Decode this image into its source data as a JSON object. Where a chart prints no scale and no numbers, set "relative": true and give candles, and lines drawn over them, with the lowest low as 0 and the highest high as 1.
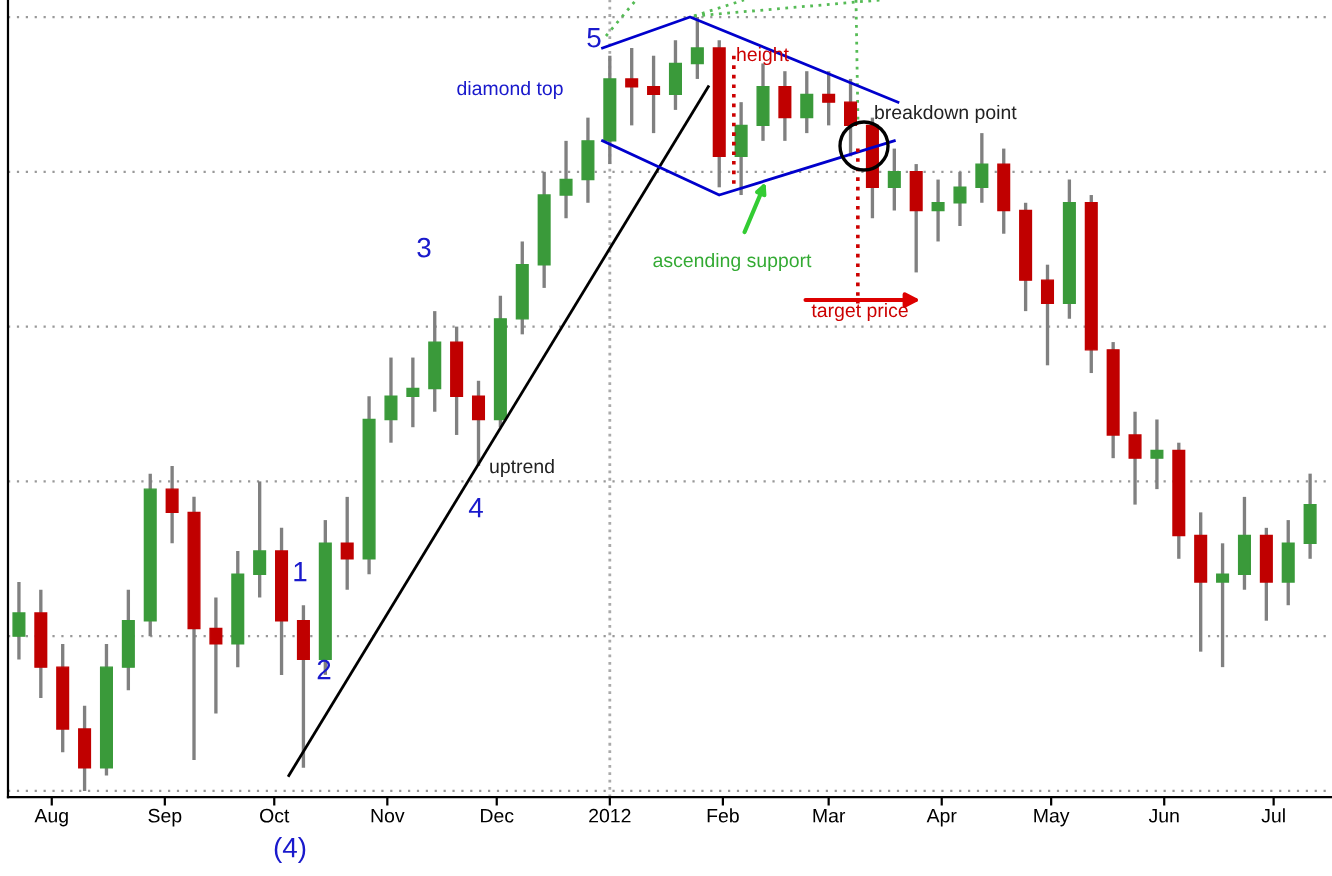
{
  "chart_data": {
    "type": "candlestick",
    "relative": true,
    "tick_labels": "x",
    "grid": "y",
    "x": [
      "2011-07-23",
      "2011-07-29",
      "2011-08-04",
      "2011-08-10",
      "2011-08-16",
      "2011-08-22",
      "2011-08-28",
      "2011-09-03",
      "2011-09-09",
      "2011-09-15",
      "2011-09-21",
      "2011-09-27",
      "2011-10-03",
      "2011-10-09",
      "2011-10-15",
      "2011-10-21",
      "2011-10-27",
      "2011-11-02",
      "2011-11-08",
      "2011-11-14",
      "2011-11-20",
      "2011-11-26",
      "2011-12-02",
      "2011-12-08",
      "2011-12-14",
      "2011-12-20",
      "2011-12-26",
      "2012-01-01",
      "2012-01-07",
      "2012-01-13",
      "2012-01-19",
      "2012-01-25",
      "2012-01-31",
      "2012-02-06",
      "2012-02-12",
      "2012-02-18",
      "2012-02-24",
      "2012-03-01",
      "2012-03-07",
      "2012-03-13",
      "2012-03-19",
      "2012-03-25",
      "2012-03-31",
      "2012-04-06",
      "2012-04-12",
      "2012-04-18",
      "2012-04-24",
      "2012-04-30",
      "2012-05-06",
      "2012-05-12",
      "2012-05-18",
      "2012-05-24",
      "2012-05-30",
      "2012-06-05",
      "2012-06-11",
      "2012-06-17",
      "2012-06-23",
      "2012-06-29",
      "2012-07-05",
      "2012-07-11"
    ],
    "ohlc": [
      [
        0.2,
        0.27,
        0.17,
        0.23
      ],
      [
        0.23,
        0.26,
        0.12,
        0.16
      ],
      [
        0.16,
        0.19,
        0.05,
        0.08
      ],
      [
        0.08,
        0.11,
        0.0,
        0.03
      ],
      [
        0.03,
        0.19,
        0.02,
        0.16
      ],
      [
        0.16,
        0.26,
        0.13,
        0.22
      ],
      [
        0.22,
        0.41,
        0.2,
        0.39
      ],
      [
        0.39,
        0.42,
        0.32,
        0.36
      ],
      [
        0.36,
        0.38,
        0.04,
        0.21
      ],
      [
        0.21,
        0.25,
        0.1,
        0.19
      ],
      [
        0.19,
        0.31,
        0.16,
        0.28
      ],
      [
        0.28,
        0.4,
        0.25,
        0.31
      ],
      [
        0.31,
        0.34,
        0.15,
        0.22
      ],
      [
        0.22,
        0.24,
        0.03,
        0.17
      ],
      [
        0.17,
        0.35,
        0.15,
        0.32
      ],
      [
        0.32,
        0.38,
        0.26,
        0.3
      ],
      [
        0.3,
        0.51,
        0.28,
        0.48
      ],
      [
        0.48,
        0.56,
        0.45,
        0.51
      ],
      [
        0.51,
        0.56,
        0.47,
        0.52
      ],
      [
        0.52,
        0.62,
        0.49,
        0.58
      ],
      [
        0.58,
        0.6,
        0.46,
        0.51
      ],
      [
        0.51,
        0.53,
        0.42,
        0.48
      ],
      [
        0.48,
        0.64,
        0.47,
        0.61
      ],
      [
        0.61,
        0.71,
        0.59,
        0.68
      ],
      [
        0.68,
        0.8,
        0.65,
        0.77
      ],
      [
        0.77,
        0.84,
        0.74,
        0.79
      ],
      [
        0.79,
        0.87,
        0.76,
        0.84
      ],
      [
        0.84,
        0.95,
        0.81,
        0.92
      ],
      [
        0.92,
        0.96,
        0.86,
        0.91
      ],
      [
        0.91,
        0.95,
        0.85,
        0.9
      ],
      [
        0.9,
        0.97,
        0.88,
        0.94
      ],
      [
        0.94,
        1.0,
        0.92,
        0.96
      ],
      [
        0.96,
        0.97,
        0.78,
        0.82
      ],
      [
        0.82,
        0.89,
        0.77,
        0.86
      ],
      [
        0.86,
        0.94,
        0.84,
        0.91
      ],
      [
        0.91,
        0.93,
        0.84,
        0.87
      ],
      [
        0.87,
        0.93,
        0.85,
        0.9
      ],
      [
        0.9,
        0.93,
        0.86,
        0.89
      ],
      [
        0.89,
        0.92,
        0.82,
        0.86
      ],
      [
        0.86,
        0.87,
        0.74,
        0.78
      ],
      [
        0.78,
        0.83,
        0.75,
        0.8
      ],
      [
        0.8,
        0.81,
        0.67,
        0.75
      ],
      [
        0.75,
        0.79,
        0.71,
        0.76
      ],
      [
        0.76,
        0.8,
        0.73,
        0.78
      ],
      [
        0.78,
        0.85,
        0.76,
        0.81
      ],
      [
        0.81,
        0.83,
        0.72,
        0.75
      ],
      [
        0.75,
        0.76,
        0.62,
        0.66
      ],
      [
        0.66,
        0.68,
        0.55,
        0.63
      ],
      [
        0.63,
        0.79,
        0.61,
        0.76
      ],
      [
        0.76,
        0.77,
        0.54,
        0.57
      ],
      [
        0.57,
        0.58,
        0.43,
        0.46
      ],
      [
        0.46,
        0.49,
        0.37,
        0.43
      ],
      [
        0.43,
        0.48,
        0.39,
        0.44
      ],
      [
        0.44,
        0.45,
        0.3,
        0.33
      ],
      [
        0.33,
        0.36,
        0.18,
        0.27
      ],
      [
        0.27,
        0.32,
        0.16,
        0.28
      ],
      [
        0.28,
        0.38,
        0.26,
        0.33
      ],
      [
        0.33,
        0.34,
        0.22,
        0.27
      ],
      [
        0.27,
        0.35,
        0.24,
        0.32
      ],
      [
        0.32,
        0.41,
        0.3,
        0.37
      ]
    ],
    "colors": [
      "#3a9a3a",
      "#c00000",
      "#c00000",
      "#c00000",
      "#3a9a3a",
      "#3a9a3a",
      "#3a9a3a",
      "#c00000",
      "#c00000",
      "#c00000",
      "#3a9a3a",
      "#3a9a3a",
      "#c00000",
      "#c00000",
      "#3a9a3a",
      "#c00000",
      "#3a9a3a",
      "#3a9a3a",
      "#3a9a3a",
      "#3a9a3a",
      "#c00000",
      "#c00000",
      "#3a9a3a",
      "#3a9a3a",
      "#3a9a3a",
      "#3a9a3a",
      "#3a9a3a",
      "#3a9a3a",
      "#c00000",
      "#c00000",
      "#3a9a3a",
      "#3a9a3a",
      "#c00000",
      "#3a9a3a",
      "#3a9a3a",
      "#c00000",
      "#3a9a3a",
      "#c00000",
      "#c00000",
      "#c00000",
      "#3a9a3a",
      "#c00000",
      "#3a9a3a",
      "#3a9a3a",
      "#3a9a3a",
      "#c00000",
      "#c00000",
      "#c00000",
      "#3a9a3a",
      "#c00000",
      "#c00000",
      "#c00000",
      "#3a9a3a",
      "#c00000",
      "#c00000",
      "#3a9a3a",
      "#3a9a3a",
      "#c00000",
      "#3a9a3a",
      "#3a9a3a"
    ],
    "series": [
      {
        "type": "line",
        "x": [
          "2011-10-05",
          "2012-01-28"
        ],
        "values": [
          0.02,
          0.91
        ],
        "color": "#000000"
      },
      {
        "type": "line",
        "x": [
          "2011-12-30",
          "2012-01-23",
          "2012-03-20"
        ],
        "values": [
          0.96,
          1.0,
          0.89
        ],
        "color": "#0000cc"
      },
      {
        "type": "line",
        "x": [
          "2011-12-30",
          "2012-01-31",
          "2012-03-19"
        ],
        "values": [
          0.84,
          0.77,
          0.84
        ],
        "color": "#0000cc"
      },
      {
        "type": "line",
        "x": [
          "2012-02-04",
          "2012-02-04"
        ],
        "values": [
          0.95,
          0.78
        ],
        "color": "#cc0000",
        "line_style": "dotted"
      },
      {
        "type": "line",
        "x": [
          "2012-03-09",
          "2012-03-09"
        ],
        "values": [
          0.83,
          0.63
        ],
        "color": "#cc0000",
        "line_style": "dotted"
      }
    ],
    "ref_lines": [
      {
        "axis": "x",
        "value": "2012-01-01",
        "label": null,
        "color": "#aaaaaa",
        "line_style": "dotted"
      }
    ],
    "xlim": [
      "2011-07-20",
      "2012-07-17"
    ],
    "xticks": [
      {
        "value": "2011-08-01",
        "label": "Aug"
      },
      {
        "value": "2011-09-01",
        "label": "Sep"
      },
      {
        "value": "2011-10-01",
        "label": "Oct"
      },
      {
        "value": "2011-11-01",
        "label": "Nov"
      },
      {
        "value": "2011-12-01",
        "label": "Dec"
      },
      {
        "value": "2012-01-01",
        "label": "2012"
      },
      {
        "value": "2012-02-01",
        "label": "Feb"
      },
      {
        "value": "2012-03-01",
        "label": "Mar"
      },
      {
        "value": "2012-04-01",
        "label": "Apr"
      },
      {
        "value": "2012-05-01",
        "label": "May"
      },
      {
        "value": "2012-06-01",
        "label": "Jun"
      },
      {
        "value": "2012-07-01",
        "label": "Jul"
      }
    ],
    "annotations": [
      "diamond top",
      "5",
      "height",
      "breakdown point",
      {
        "text": "ascending support",
        "x": "2012-02-13",
        "y": 0.79
      },
      "target price",
      "uptrend",
      "1",
      "2",
      "3",
      "4",
      "(4)"
    ]
  }
}
